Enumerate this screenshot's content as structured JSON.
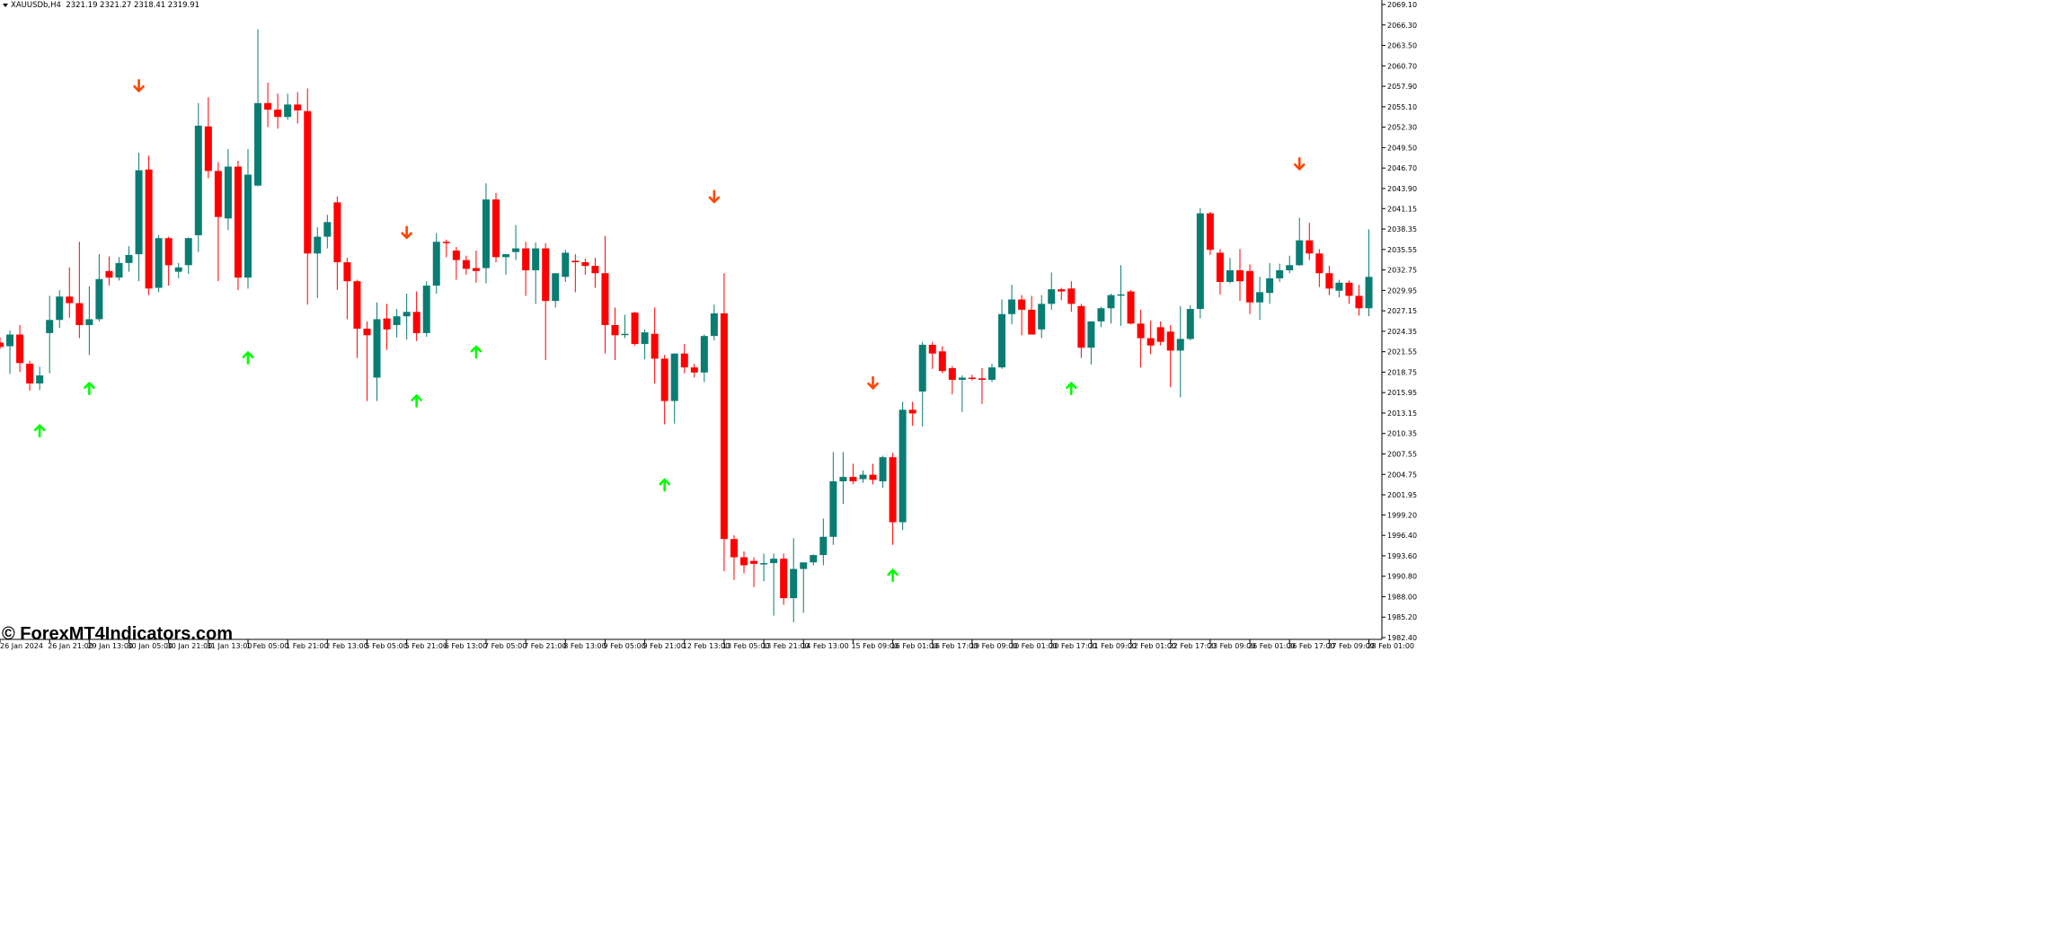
{
  "header": {
    "symbol": "XAUUSDb,H4",
    "ohlc": "2321.19 2321.27 2318.41 2319.91"
  },
  "watermark": "© ForexMT4Indicators.com",
  "colors": {
    "bull": "#0a7d73",
    "bear": "#ff0000",
    "arrow_up": "#00ff00",
    "arrow_down": "#ff4500",
    "axis": "#000000",
    "background": "#ffffff"
  },
  "chart_data": {
    "type": "candlestick",
    "y_ticks": [
      "2069.10",
      "2066.30",
      "2063.50",
      "2060.70",
      "2057.90",
      "2055.10",
      "2052.30",
      "2049.50",
      "2046.70",
      "2043.90",
      "2041.15",
      "2038.35",
      "2035.55",
      "2032.75",
      "2029.95",
      "2027.15",
      "2024.35",
      "2021.55",
      "2018.75",
      "2015.95",
      "2013.15",
      "2010.35",
      "2007.55",
      "2004.75",
      "2001.95",
      "1999.20",
      "1996.40",
      "1993.60",
      "1990.80",
      "1988.00",
      "1985.20",
      "1982.40"
    ],
    "ylim": [
      1982.4,
      2069.1
    ],
    "x_ticks": [
      {
        "label": "26 Jan 2024",
        "i": 0
      },
      {
        "label": "26 Jan 21:00",
        "i": 5
      },
      {
        "label": "29 Jan 13:00",
        "i": 9
      },
      {
        "label": "30 Jan 05:00",
        "i": 13
      },
      {
        "label": "30 Jan 21:00",
        "i": 17
      },
      {
        "label": "31 Jan 13:00",
        "i": 21
      },
      {
        "label": "1 Feb 05:00",
        "i": 25
      },
      {
        "label": "1 Feb 21:00",
        "i": 29
      },
      {
        "label": "2 Feb 13:00",
        "i": 33
      },
      {
        "label": "5 Feb 05:00",
        "i": 37
      },
      {
        "label": "5 Feb 21:00",
        "i": 41
      },
      {
        "label": "6 Feb 13:00",
        "i": 45
      },
      {
        "label": "7 Feb 05:00",
        "i": 49
      },
      {
        "label": "7 Feb 21:00",
        "i": 53
      },
      {
        "label": "8 Feb 13:00",
        "i": 57
      },
      {
        "label": "9 Feb 05:00",
        "i": 61
      },
      {
        "label": "9 Feb 21:00",
        "i": 65
      },
      {
        "label": "12 Feb 13:00",
        "i": 69
      },
      {
        "label": "13 Feb 05:00",
        "i": 73
      },
      {
        "label": "13 Feb 21:00",
        "i": 77
      },
      {
        "label": "14 Feb 13:00",
        "i": 81
      },
      {
        "label": "15 Feb 09:00",
        "i": 86
      },
      {
        "label": "16 Feb 01:00",
        "i": 90
      },
      {
        "label": "16 Feb 17:00",
        "i": 94
      },
      {
        "label": "19 Feb 09:00",
        "i": 98
      },
      {
        "label": "20 Feb 01:00",
        "i": 102
      },
      {
        "label": "20 Feb 17:00",
        "i": 106
      },
      {
        "label": "21 Feb 09:00",
        "i": 110
      },
      {
        "label": "22 Feb 01:00",
        "i": 114
      },
      {
        "label": "22 Feb 17:00",
        "i": 118
      },
      {
        "label": "23 Feb 09:00",
        "i": 122
      },
      {
        "label": "26 Feb 01:00",
        "i": 126
      },
      {
        "label": "26 Feb 17:00",
        "i": 130
      },
      {
        "label": "27 Feb 09:00",
        "i": 134
      },
      {
        "label": "28 Feb 01:00",
        "i": 138
      }
    ],
    "candles": [
      {
        "o": 2022.8,
        "h": 2023.5,
        "l": 2021.9,
        "c": 2022.2
      },
      {
        "o": 2022.3,
        "h": 2024.5,
        "l": 2018.5,
        "c": 2023.9
      },
      {
        "o": 2023.9,
        "h": 2025.2,
        "l": 2018.8,
        "c": 2020.0
      },
      {
        "o": 2019.9,
        "h": 2020.3,
        "l": 2016.2,
        "c": 2017.2
      },
      {
        "o": 2017.2,
        "h": 2019.5,
        "l": 2016.3,
        "c": 2018.3
      },
      {
        "o": 2024.1,
        "h": 2029.2,
        "l": 2018.6,
        "c": 2025.9
      },
      {
        "o": 2025.9,
        "h": 2030.0,
        "l": 2024.8,
        "c": 2029.1
      },
      {
        "o": 2029.1,
        "h": 2033.1,
        "l": 2026.2,
        "c": 2028.2
      },
      {
        "o": 2028.2,
        "h": 2036.6,
        "l": 2023.4,
        "c": 2025.2
      },
      {
        "o": 2025.2,
        "h": 2030.5,
        "l": 2021.1,
        "c": 2026.0
      },
      {
        "o": 2026.0,
        "h": 2034.9,
        "l": 2025.7,
        "c": 2031.5
      },
      {
        "o": 2032.6,
        "h": 2034.6,
        "l": 2030.6,
        "c": 2031.7
      },
      {
        "o": 2031.7,
        "h": 2034.5,
        "l": 2031.3,
        "c": 2033.7
      },
      {
        "o": 2033.7,
        "h": 2036.0,
        "l": 2032.5,
        "c": 2034.8
      },
      {
        "o": 2034.9,
        "h": 2048.8,
        "l": 2031.2,
        "c": 2046.4
      },
      {
        "o": 2046.5,
        "h": 2048.4,
        "l": 2029.3,
        "c": 2030.2
      },
      {
        "o": 2030.3,
        "h": 2037.5,
        "l": 2029.7,
        "c": 2037.1
      },
      {
        "o": 2037.1,
        "h": 2037.3,
        "l": 2030.6,
        "c": 2033.4
      },
      {
        "o": 2032.5,
        "h": 2033.7,
        "l": 2031.6,
        "c": 2033.1
      },
      {
        "o": 2033.4,
        "h": 2037.2,
        "l": 2032.2,
        "c": 2037.1
      },
      {
        "o": 2037.5,
        "h": 2055.6,
        "l": 2035.2,
        "c": 2052.5
      },
      {
        "o": 2052.4,
        "h": 2056.4,
        "l": 2045.3,
        "c": 2046.3
      },
      {
        "o": 2046.3,
        "h": 2047.5,
        "l": 2031.2,
        "c": 2040.0
      },
      {
        "o": 2039.8,
        "h": 2049.3,
        "l": 2038.2,
        "c": 2046.9
      },
      {
        "o": 2046.9,
        "h": 2047.7,
        "l": 2030.0,
        "c": 2031.7
      },
      {
        "o": 2031.7,
        "h": 2049.3,
        "l": 2030.2,
        "c": 2045.8
      },
      {
        "o": 2044.3,
        "h": 2065.7,
        "l": 2044.2,
        "c": 2055.6
      },
      {
        "o": 2055.6,
        "h": 2058.4,
        "l": 2052.3,
        "c": 2054.7
      },
      {
        "o": 2054.7,
        "h": 2056.9,
        "l": 2052.1,
        "c": 2053.7
      },
      {
        "o": 2053.7,
        "h": 2056.9,
        "l": 2053.3,
        "c": 2055.4
      },
      {
        "o": 2055.4,
        "h": 2057.1,
        "l": 2052.8,
        "c": 2054.6
      },
      {
        "o": 2054.5,
        "h": 2057.6,
        "l": 2028.0,
        "c": 2035.0
      },
      {
        "o": 2035.0,
        "h": 2038.6,
        "l": 2028.9,
        "c": 2037.3
      },
      {
        "o": 2037.3,
        "h": 2040.3,
        "l": 2035.7,
        "c": 2039.3
      },
      {
        "o": 2042.0,
        "h": 2042.8,
        "l": 2030.0,
        "c": 2033.8
      },
      {
        "o": 2033.8,
        "h": 2034.4,
        "l": 2026.0,
        "c": 2031.2
      },
      {
        "o": 2031.2,
        "h": 2031.4,
        "l": 2020.7,
        "c": 2024.7
      },
      {
        "o": 2024.7,
        "h": 2025.7,
        "l": 2014.8,
        "c": 2023.8
      },
      {
        "o": 2018.0,
        "h": 2028.3,
        "l": 2014.8,
        "c": 2026.0
      },
      {
        "o": 2026.1,
        "h": 2028.1,
        "l": 2021.8,
        "c": 2024.6
      },
      {
        "o": 2025.2,
        "h": 2027.4,
        "l": 2023.5,
        "c": 2026.4
      },
      {
        "o": 2026.4,
        "h": 2029.5,
        "l": 2023.2,
        "c": 2027.0
      },
      {
        "o": 2027.0,
        "h": 2029.8,
        "l": 2023.0,
        "c": 2024.1
      },
      {
        "o": 2024.1,
        "h": 2031.2,
        "l": 2023.6,
        "c": 2030.6
      },
      {
        "o": 2030.6,
        "h": 2037.8,
        "l": 2029.5,
        "c": 2036.6
      },
      {
        "o": 2036.6,
        "h": 2036.9,
        "l": 2034.5,
        "c": 2036.5
      },
      {
        "o": 2035.4,
        "h": 2035.9,
        "l": 2031.4,
        "c": 2034.1
      },
      {
        "o": 2034.1,
        "h": 2034.7,
        "l": 2032.1,
        "c": 2032.9
      },
      {
        "o": 2033.0,
        "h": 2035.4,
        "l": 2031.0,
        "c": 2032.6
      },
      {
        "o": 2033.0,
        "h": 2044.6,
        "l": 2030.9,
        "c": 2042.4
      },
      {
        "o": 2042.4,
        "h": 2043.3,
        "l": 2033.8,
        "c": 2034.5
      },
      {
        "o": 2034.5,
        "h": 2034.9,
        "l": 2032.1,
        "c": 2034.9
      },
      {
        "o": 2035.2,
        "h": 2038.9,
        "l": 2034.1,
        "c": 2035.7
      },
      {
        "o": 2035.7,
        "h": 2036.6,
        "l": 2029.2,
        "c": 2032.7
      },
      {
        "o": 2032.7,
        "h": 2036.5,
        "l": 2028.1,
        "c": 2035.7
      },
      {
        "o": 2035.7,
        "h": 2036.4,
        "l": 2020.4,
        "c": 2028.5
      },
      {
        "o": 2028.5,
        "h": 2032.2,
        "l": 2027.6,
        "c": 2032.3
      },
      {
        "o": 2031.8,
        "h": 2035.5,
        "l": 2031.1,
        "c": 2035.1
      },
      {
        "o": 2034.0,
        "h": 2034.9,
        "l": 2029.7,
        "c": 2033.8
      },
      {
        "o": 2033.8,
        "h": 2034.3,
        "l": 2032.1,
        "c": 2033.3
      },
      {
        "o": 2033.3,
        "h": 2034.4,
        "l": 2030.3,
        "c": 2032.3
      },
      {
        "o": 2032.3,
        "h": 2037.4,
        "l": 2021.3,
        "c": 2025.2
      },
      {
        "o": 2025.2,
        "h": 2027.6,
        "l": 2020.4,
        "c": 2023.8
      },
      {
        "o": 2024.0,
        "h": 2026.6,
        "l": 2023.4,
        "c": 2024.0
      },
      {
        "o": 2026.9,
        "h": 2027.0,
        "l": 2022.4,
        "c": 2022.6
      },
      {
        "o": 2022.6,
        "h": 2024.6,
        "l": 2020.5,
        "c": 2024.2
      },
      {
        "o": 2024.0,
        "h": 2027.6,
        "l": 2017.2,
        "c": 2020.6
      },
      {
        "o": 2020.6,
        "h": 2021.1,
        "l": 2011.6,
        "c": 2014.8
      },
      {
        "o": 2014.8,
        "h": 2021.3,
        "l": 2011.7,
        "c": 2021.3
      },
      {
        "o": 2021.3,
        "h": 2022.6,
        "l": 2018.6,
        "c": 2019.4
      },
      {
        "o": 2019.4,
        "h": 2019.9,
        "l": 2018.0,
        "c": 2018.7
      },
      {
        "o": 2018.7,
        "h": 2023.9,
        "l": 2017.4,
        "c": 2023.7
      },
      {
        "o": 2023.7,
        "h": 2028.0,
        "l": 2023.1,
        "c": 2026.8
      },
      {
        "o": 2026.8,
        "h": 2032.3,
        "l": 1991.5,
        "c": 1995.9
      },
      {
        "o": 1995.9,
        "h": 1996.4,
        "l": 1990.3,
        "c": 1993.4
      },
      {
        "o": 1993.4,
        "h": 1994.2,
        "l": 1991.2,
        "c": 1992.3
      },
      {
        "o": 1992.9,
        "h": 1993.4,
        "l": 1989.3,
        "c": 1992.5
      },
      {
        "o": 1992.5,
        "h": 1993.9,
        "l": 1990.1,
        "c": 1992.6
      },
      {
        "o": 1992.6,
        "h": 1993.9,
        "l": 1985.4,
        "c": 1993.2
      },
      {
        "o": 1993.2,
        "h": 1993.9,
        "l": 1986.9,
        "c": 1987.8
      },
      {
        "o": 1987.8,
        "h": 1996.0,
        "l": 1984.5,
        "c": 1991.8
      },
      {
        "o": 1991.8,
        "h": 1992.6,
        "l": 1985.8,
        "c": 1992.7
      },
      {
        "o": 1992.7,
        "h": 1993.8,
        "l": 1992.3,
        "c": 1993.7
      },
      {
        "o": 1993.7,
        "h": 1998.7,
        "l": 1992.3,
        "c": 1996.2
      },
      {
        "o": 1996.2,
        "h": 2007.8,
        "l": 1995.1,
        "c": 2003.8
      },
      {
        "o": 2003.8,
        "h": 2007.8,
        "l": 2000.7,
        "c": 2004.4
      },
      {
        "o": 2004.4,
        "h": 2006.2,
        "l": 2003.4,
        "c": 2003.8
      },
      {
        "o": 2004.1,
        "h": 2005.3,
        "l": 2003.6,
        "c": 2004.7
      },
      {
        "o": 2004.7,
        "h": 2006.2,
        "l": 2003.4,
        "c": 2004.0
      },
      {
        "o": 2003.8,
        "h": 2007.3,
        "l": 2002.9,
        "c": 2007.1
      },
      {
        "o": 2007.1,
        "h": 2007.7,
        "l": 1995.1,
        "c": 1998.2
      },
      {
        "o": 1998.2,
        "h": 2014.7,
        "l": 1997.1,
        "c": 2013.6
      },
      {
        "o": 2013.6,
        "h": 2014.7,
        "l": 2011.4,
        "c": 2013.1
      },
      {
        "o": 2016.1,
        "h": 2022.9,
        "l": 2011.3,
        "c": 2022.5
      },
      {
        "o": 2022.5,
        "h": 2022.9,
        "l": 2019.2,
        "c": 2021.3
      },
      {
        "o": 2021.6,
        "h": 2022.3,
        "l": 2018.6,
        "c": 2018.9
      },
      {
        "o": 2019.3,
        "h": 2019.6,
        "l": 2015.7,
        "c": 2017.7
      },
      {
        "o": 2017.7,
        "h": 2018.3,
        "l": 2013.3,
        "c": 2018.0
      },
      {
        "o": 2018.0,
        "h": 2018.4,
        "l": 2017.6,
        "c": 2017.9
      },
      {
        "o": 2017.9,
        "h": 2019.3,
        "l": 2014.4,
        "c": 2017.7
      },
      {
        "o": 2017.7,
        "h": 2019.9,
        "l": 2017.4,
        "c": 2019.4
      },
      {
        "o": 2019.4,
        "h": 2028.7,
        "l": 2019.2,
        "c": 2026.7
      },
      {
        "o": 2026.7,
        "h": 2030.7,
        "l": 2025.3,
        "c": 2028.7
      },
      {
        "o": 2028.7,
        "h": 2029.3,
        "l": 2023.8,
        "c": 2027.3
      },
      {
        "o": 2027.3,
        "h": 2029.2,
        "l": 2023.9,
        "c": 2023.9
      },
      {
        "o": 2024.6,
        "h": 2029.3,
        "l": 2023.4,
        "c": 2028.1
      },
      {
        "o": 2028.1,
        "h": 2032.4,
        "l": 2027.3,
        "c": 2030.1
      },
      {
        "o": 2030.1,
        "h": 2030.3,
        "l": 2028.6,
        "c": 2029.8
      },
      {
        "o": 2030.2,
        "h": 2031.2,
        "l": 2027.0,
        "c": 2028.1
      },
      {
        "o": 2027.8,
        "h": 2028.1,
        "l": 2020.7,
        "c": 2022.1
      },
      {
        "o": 2022.1,
        "h": 2025.6,
        "l": 2019.8,
        "c": 2025.7
      },
      {
        "o": 2025.7,
        "h": 2027.7,
        "l": 2024.9,
        "c": 2027.5
      },
      {
        "o": 2027.5,
        "h": 2029.5,
        "l": 2025.4,
        "c": 2029.3
      },
      {
        "o": 2029.3,
        "h": 2033.4,
        "l": 2025.1,
        "c": 2029.4
      },
      {
        "o": 2029.8,
        "h": 2030.0,
        "l": 2025.3,
        "c": 2025.4
      },
      {
        "o": 2025.4,
        "h": 2027.3,
        "l": 2019.4,
        "c": 2023.4
      },
      {
        "o": 2023.4,
        "h": 2025.8,
        "l": 2021.2,
        "c": 2022.4
      },
      {
        "o": 2024.9,
        "h": 2025.7,
        "l": 2022.4,
        "c": 2022.9
      },
      {
        "o": 2024.3,
        "h": 2025.2,
        "l": 2016.7,
        "c": 2021.7
      },
      {
        "o": 2021.7,
        "h": 2027.8,
        "l": 2015.3,
        "c": 2023.3
      },
      {
        "o": 2023.3,
        "h": 2027.9,
        "l": 2023.1,
        "c": 2027.4
      },
      {
        "o": 2027.4,
        "h": 2041.2,
        "l": 2026.1,
        "c": 2040.5
      },
      {
        "o": 2040.5,
        "h": 2040.7,
        "l": 2034.8,
        "c": 2035.5
      },
      {
        "o": 2035.1,
        "h": 2035.6,
        "l": 2029.4,
        "c": 2031.1
      },
      {
        "o": 2031.1,
        "h": 2034.4,
        "l": 2030.9,
        "c": 2032.7
      },
      {
        "o": 2032.7,
        "h": 2035.6,
        "l": 2028.5,
        "c": 2031.2
      },
      {
        "o": 2032.6,
        "h": 2033.5,
        "l": 2026.7,
        "c": 2028.3
      },
      {
        "o": 2028.3,
        "h": 2031.8,
        "l": 2025.9,
        "c": 2029.7
      },
      {
        "o": 2029.6,
        "h": 2033.7,
        "l": 2028.1,
        "c": 2031.6
      },
      {
        "o": 2031.6,
        "h": 2033.6,
        "l": 2031.1,
        "c": 2032.7
      },
      {
        "o": 2032.7,
        "h": 2034.7,
        "l": 2032.3,
        "c": 2033.4
      },
      {
        "o": 2033.4,
        "h": 2039.9,
        "l": 2033.3,
        "c": 2036.8
      },
      {
        "o": 2036.8,
        "h": 2039.2,
        "l": 2034.1,
        "c": 2035.0
      },
      {
        "o": 2035.0,
        "h": 2035.6,
        "l": 2030.4,
        "c": 2032.3
      },
      {
        "o": 2032.3,
        "h": 2033.3,
        "l": 2029.3,
        "c": 2030.2
      },
      {
        "o": 2029.9,
        "h": 2031.4,
        "l": 2029.0,
        "c": 2031.0
      },
      {
        "o": 2031.0,
        "h": 2031.3,
        "l": 2028.1,
        "c": 2029.2
      },
      {
        "o": 2029.2,
        "h": 2030.7,
        "l": 2026.5,
        "c": 2027.5
      },
      {
        "o": 2027.5,
        "h": 2038.3,
        "l": 2026.4,
        "c": 2031.8
      }
    ],
    "signals": [
      {
        "i": 4,
        "dir": "up",
        "price": 2010.7
      },
      {
        "i": 9,
        "dir": "up",
        "price": 2016.5
      },
      {
        "i": 14,
        "dir": "down",
        "price": 2058.0
      },
      {
        "i": 25,
        "dir": "up",
        "price": 2020.7
      },
      {
        "i": 41,
        "dir": "down",
        "price": 2037.9
      },
      {
        "i": 42,
        "dir": "up",
        "price": 2014.8
      },
      {
        "i": 48,
        "dir": "up",
        "price": 2021.5
      },
      {
        "i": 67,
        "dir": "up",
        "price": 2003.3
      },
      {
        "i": 72,
        "dir": "down",
        "price": 2042.8
      },
      {
        "i": 88,
        "dir": "down",
        "price": 2017.3
      },
      {
        "i": 90,
        "dir": "up",
        "price": 1990.9
      },
      {
        "i": 108,
        "dir": "up",
        "price": 2016.5
      },
      {
        "i": 131,
        "dir": "down",
        "price": 2047.3
      }
    ]
  }
}
